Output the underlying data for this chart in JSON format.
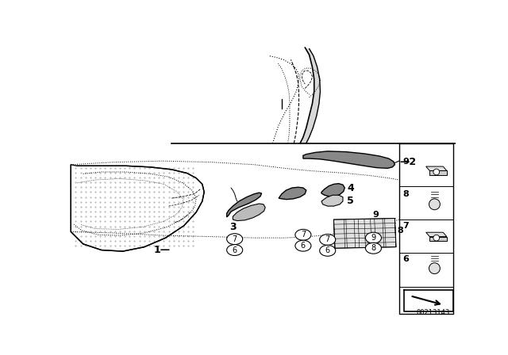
{
  "bg_color": "#ffffff",
  "lc": "#000000",
  "diagram_number": "00213143",
  "figsize": [
    6.4,
    4.48
  ],
  "dpi": 100
}
